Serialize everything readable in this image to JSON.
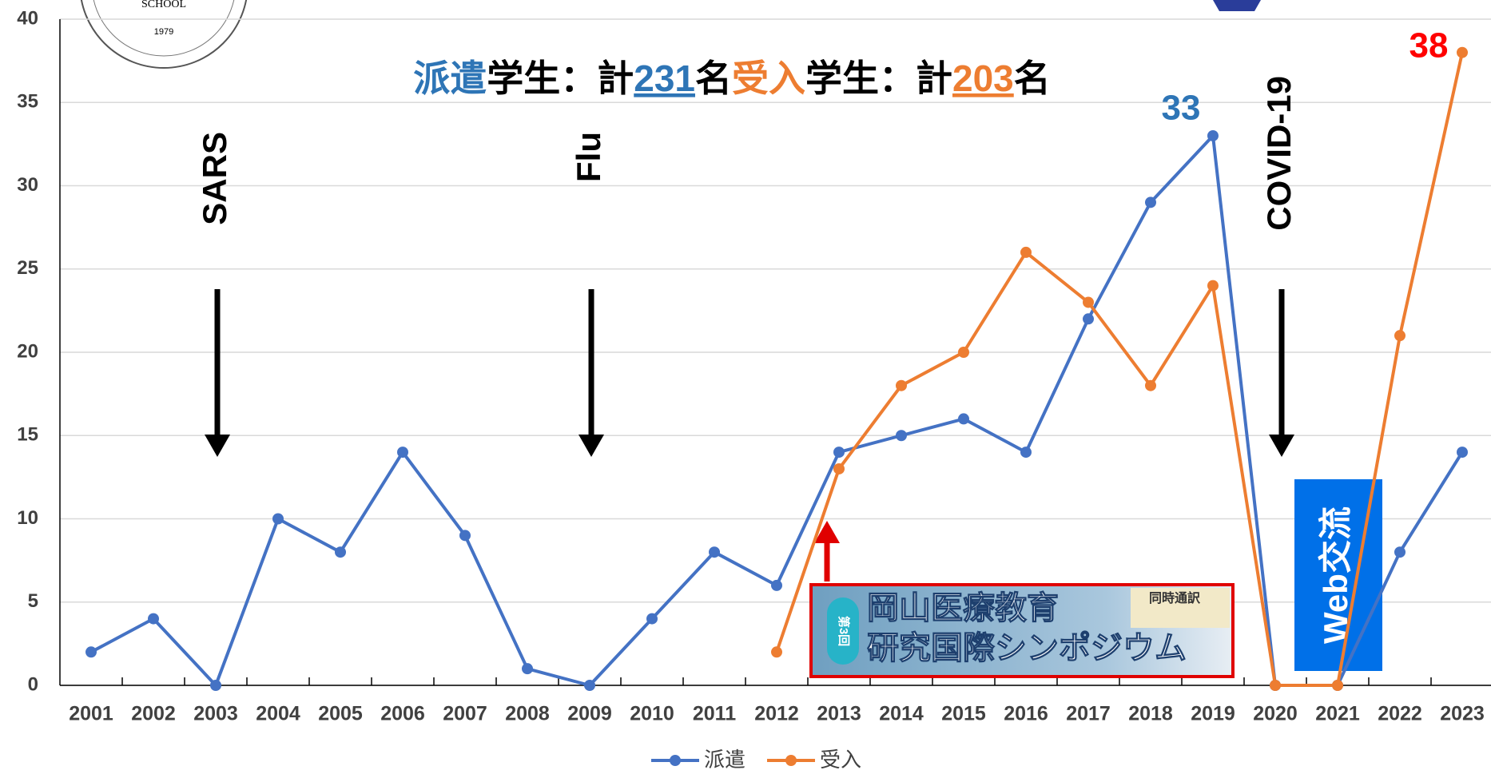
{
  "chart_data": {
    "type": "line",
    "title_parts": [
      {
        "text": "派遣",
        "color": "#2e75b6",
        "underline": false
      },
      {
        "text": "学生：計",
        "color": "#000000",
        "underline": false
      },
      {
        "text": "231",
        "color": "#2e75b6",
        "underline": true
      },
      {
        "text": "名",
        "color": "#000000",
        "underline": false
      },
      {
        "text": "受入",
        "color": "#ed7d31",
        "underline": false
      },
      {
        "text": "学生：計",
        "color": "#000000",
        "underline": false
      },
      {
        "text": "203",
        "color": "#ed7d31",
        "underline": true
      },
      {
        "text": "名",
        "color": "#000000",
        "underline": false
      }
    ],
    "categories": [
      "2001",
      "2002",
      "2003",
      "2004",
      "2005",
      "2006",
      "2007",
      "2008",
      "2009",
      "2010",
      "2011",
      "2012",
      "2013",
      "2014",
      "2015",
      "2016",
      "2017",
      "2018",
      "2019",
      "2020",
      "2021",
      "2022",
      "2023"
    ],
    "series": [
      {
        "name": "派遣",
        "color": "#4472c4",
        "values": [
          2,
          4,
          0,
          10,
          8,
          14,
          9,
          1,
          0,
          4,
          8,
          6,
          14,
          15,
          16,
          14,
          22,
          29,
          33,
          0,
          0,
          8,
          14
        ]
      },
      {
        "name": "受入",
        "color": "#ed7d31",
        "values": [
          null,
          null,
          null,
          null,
          null,
          null,
          null,
          null,
          null,
          null,
          null,
          2,
          13,
          18,
          20,
          26,
          23,
          18,
          24,
          0,
          0,
          21,
          38
        ]
      }
    ],
    "ylim": [
      0,
      40
    ],
    "yticks": [
      0,
      5,
      10,
      15,
      20,
      25,
      30,
      35,
      40
    ],
    "grid": true,
    "legend": "bottom",
    "annotations": [
      {
        "text": "SARS",
        "category": "2003"
      },
      {
        "text": "Flu",
        "category": "2009"
      },
      {
        "text": "COVID-19",
        "category": "2020"
      }
    ],
    "web_label": "Web交流"
  },
  "banner": {
    "badge": "第3回",
    "line1": "岡山医療教育",
    "line2": "研究国際シンポジウム",
    "corner": "同時通訳"
  },
  "logo": {
    "text": "SCHOOL",
    "year": "1979"
  }
}
